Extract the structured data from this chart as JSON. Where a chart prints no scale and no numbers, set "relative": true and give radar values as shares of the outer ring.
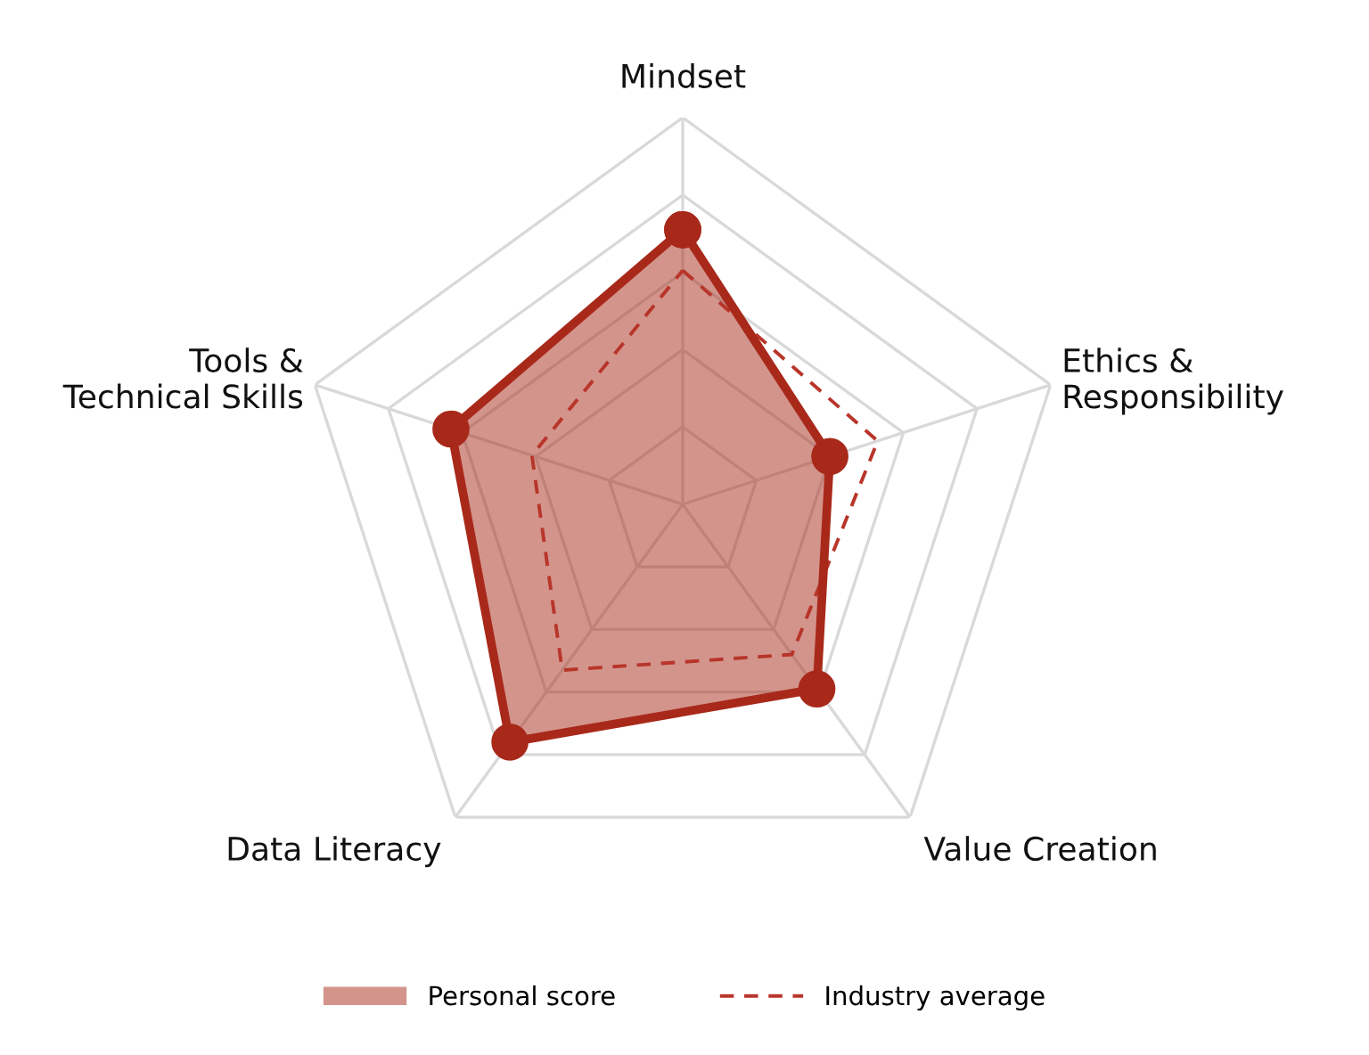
{
  "chart_data": {
    "type": "radar",
    "relative": true,
    "categories": [
      "Mindset",
      "Ethics &\nResponsibility",
      "Value Creation",
      "Data Literacy",
      "Tools &\nTechnical Skills"
    ],
    "series": [
      {
        "name": "Personal score",
        "color": "#a8291a",
        "marker": "circle",
        "line_style": "solid",
        "values": [
          0.71,
          0.4,
          0.59,
          0.76,
          0.63
        ]
      },
      {
        "name": "Industry average",
        "color": "#b8352a",
        "marker": "none",
        "line_style": "dashed",
        "values": [
          0.605,
          0.53,
          0.48,
          0.53,
          0.41
        ]
      }
    ],
    "grid": true,
    "legend": "bottom"
  }
}
